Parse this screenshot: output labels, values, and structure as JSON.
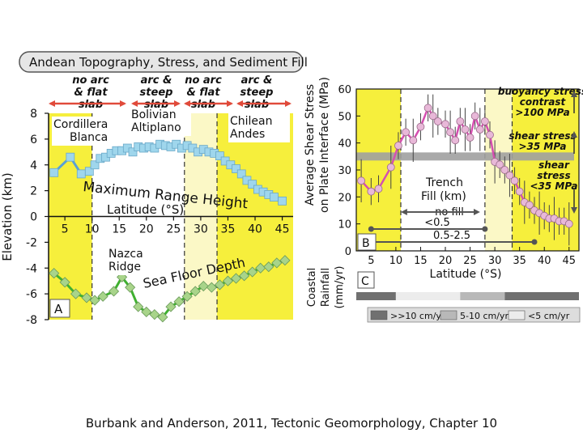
{
  "title": "Andean Topography, Stress, and Sediment Fill",
  "caption": "Burbank and Anderson, 2011, Tectonic Geomorphology, Chapter 10",
  "colors": {
    "yellow_zone": "#f6ef3c",
    "pale_zone": "#fbf8c6",
    "elevation_line": "#5aa0d6",
    "elevation_marker": "#9fd6ec",
    "seafloor_line": "#40b030",
    "seafloor_marker": "#a8d48a",
    "stress_line": "#d54fb0",
    "stress_marker": "#e8b8d8",
    "reference_band": "#a0a0a0",
    "arrow_red": "#e04a3a"
  },
  "zones": [
    {
      "label": "no arc & flat slab",
      "lines": [
        "no arc",
        "& flat",
        "slab"
      ],
      "from": 2,
      "to": 10
    },
    {
      "label": "arc & steep slab",
      "lines": [
        "arc &",
        "steep",
        "slab"
      ],
      "from": 10,
      "to": 27
    },
    {
      "label": "no arc & flat slab",
      "lines": [
        "no arc",
        "& flat",
        "slab"
      ],
      "from": 27,
      "to": 33
    },
    {
      "label": "arc & steep slab",
      "lines": [
        "arc &",
        "steep",
        "slab"
      ],
      "from": 33,
      "to": 47
    }
  ],
  "panel_a": {
    "letter": "A",
    "ylabel": "Elevation (km)",
    "ylim": [
      -8,
      8
    ],
    "yticks": [
      8,
      6,
      4,
      2,
      0,
      -2,
      -4,
      -6,
      -8
    ],
    "xlabel": "Latitude (°S)",
    "xlim": [
      2,
      47
    ],
    "xticks": [
      5,
      10,
      15,
      20,
      25,
      30,
      35,
      40,
      45
    ],
    "region_labels": [
      {
        "lines": [
          "Cordillera",
          "Blanca"
        ]
      },
      {
        "lines": [
          "Bolivian",
          "Altiplano"
        ]
      },
      {
        "lines": [
          "Chilean",
          "Andes"
        ]
      },
      {
        "lines": [
          "Nazca",
          "Ridge"
        ]
      }
    ],
    "range_label": "Maximum Range Height",
    "seafloor_label": "Sea Floor Depth"
  },
  "panel_b": {
    "letter": "B",
    "ylabel_lines": [
      "Average Shear Stress",
      "on Plate Interface (MPa)"
    ],
    "ylim": [
      0,
      60
    ],
    "yticks": [
      0,
      10,
      20,
      30,
      40,
      50,
      60
    ],
    "xlabel": "Latitude (°S)",
    "xlim": [
      2,
      47
    ],
    "xticks": [
      5,
      10,
      15,
      20,
      25,
      30,
      35,
      40,
      45
    ],
    "trench_label_lines": [
      "Trench",
      "Fill (km)"
    ],
    "fill_ranges": [
      {
        "label": "no fill",
        "from": 10,
        "to": 28
      },
      {
        "label": "<0.5",
        "from": 5,
        "to": 28
      },
      {
        "label": "0.5-2.5",
        "from": 5,
        "to": 38
      }
    ],
    "annotations": [
      {
        "lines": [
          "buoyancy stress",
          "contrast",
          ">100 MPa"
        ]
      },
      {
        "lines": [
          "shear stress",
          ">35 MPa"
        ]
      },
      {
        "lines": [
          "shear",
          "stress",
          "<35 MPa"
        ]
      }
    ]
  },
  "panel_c": {
    "letter": "C",
    "ylabel_lines": [
      "Coastal",
      "Rainfall",
      "(mm/yr)"
    ],
    "segments": [
      {
        "from": 2,
        "to": 10,
        "class": ">>10 cm/yr"
      },
      {
        "from": 10,
        "to": 23,
        "class": "<5 cm/yr"
      },
      {
        "from": 23,
        "to": 32,
        "class": "5-10 cm/yr"
      },
      {
        "from": 32,
        "to": 47,
        "class": ">>10 cm/yr"
      }
    ],
    "legend": [
      {
        "label": ">>10 cm/yr",
        "color": "#707070"
      },
      {
        "label": "5-10 cm/yr",
        "color": "#b8b8b8"
      },
      {
        "label": "<5 cm/yr",
        "color": "#ececec"
      }
    ]
  },
  "chart_data": [
    {
      "type": "line",
      "title": "",
      "xlabel": "Latitude (°S)",
      "ylabel": "Elevation (km)",
      "xlim": [
        2,
        47
      ],
      "ylim": [
        -8,
        8
      ],
      "series": [
        {
          "name": "Maximum Range Height",
          "x": [
            3,
            6,
            8,
            9.5,
            10.5,
            11.5,
            12.5,
            13.5,
            14.5,
            15.5,
            16.5,
            17.5,
            18.5,
            19.5,
            20.5,
            21.5,
            22.5,
            23.5,
            24.5,
            25.5,
            26.5,
            27.5,
            28.5,
            29.5,
            30.5,
            31.5,
            32.5,
            33.5,
            34.5,
            35.5,
            36.5,
            37.5,
            38.5,
            39.5,
            40.5,
            41.5,
            42.5,
            43.5,
            45
          ],
          "y": [
            3.4,
            4.6,
            3.3,
            3.5,
            4.0,
            4.5,
            4.6,
            4.9,
            5.1,
            5.1,
            5.3,
            5.0,
            5.4,
            5.3,
            5.4,
            5.3,
            5.6,
            5.5,
            5.4,
            5.6,
            5.3,
            5.5,
            5.3,
            5.0,
            5.2,
            5.0,
            4.9,
            4.7,
            4.3,
            4.0,
            3.7,
            3.3,
            2.8,
            2.5,
            2.1,
            1.9,
            1.7,
            1.5,
            1.2
          ]
        },
        {
          "name": "Sea Floor Depth",
          "x": [
            3,
            5,
            7,
            9,
            10.5,
            12,
            14,
            15.5,
            17,
            18.5,
            20,
            21.5,
            23,
            24.5,
            26,
            27.5,
            29,
            30.5,
            32,
            33.5,
            35,
            36.5,
            38,
            39.5,
            41,
            42.5,
            44,
            45.5
          ],
          "y": [
            -4.4,
            -5.1,
            -6.0,
            -6.3,
            -6.5,
            -6.2,
            -5.8,
            -4.7,
            -5.5,
            -7.0,
            -7.4,
            -7.6,
            -7.8,
            -7.0,
            -6.6,
            -6.2,
            -5.8,
            -5.4,
            -5.5,
            -5.3,
            -5.0,
            -4.8,
            -4.6,
            -4.3,
            -4.0,
            -3.9,
            -3.6,
            -3.4
          ]
        }
      ]
    },
    {
      "type": "line",
      "title": "",
      "xlabel": "Latitude (°S)",
      "ylabel": "Average Shear Stress on Plate Interface (MPa)",
      "xlim": [
        2,
        47
      ],
      "ylim": [
        0,
        60
      ],
      "series": [
        {
          "name": "Average Shear Stress",
          "x": [
            3,
            5,
            6.5,
            9,
            10.5,
            12,
            13.5,
            15,
            16.5,
            17.5,
            18.5,
            20,
            21,
            22,
            23,
            24,
            25,
            26,
            27,
            28,
            29,
            30,
            31,
            32,
            33,
            34,
            35,
            36,
            37,
            38,
            39,
            40,
            41,
            42,
            43,
            44,
            45
          ],
          "y": [
            26,
            22,
            23,
            31,
            39,
            44,
            41,
            46,
            53,
            50,
            48,
            47,
            44,
            41,
            48,
            45,
            42,
            50,
            45,
            48,
            43,
            33,
            32,
            30,
            28,
            26,
            22,
            18,
            17,
            15,
            14,
            13,
            12,
            12,
            11,
            11,
            10
          ]
        }
      ]
    }
  ]
}
